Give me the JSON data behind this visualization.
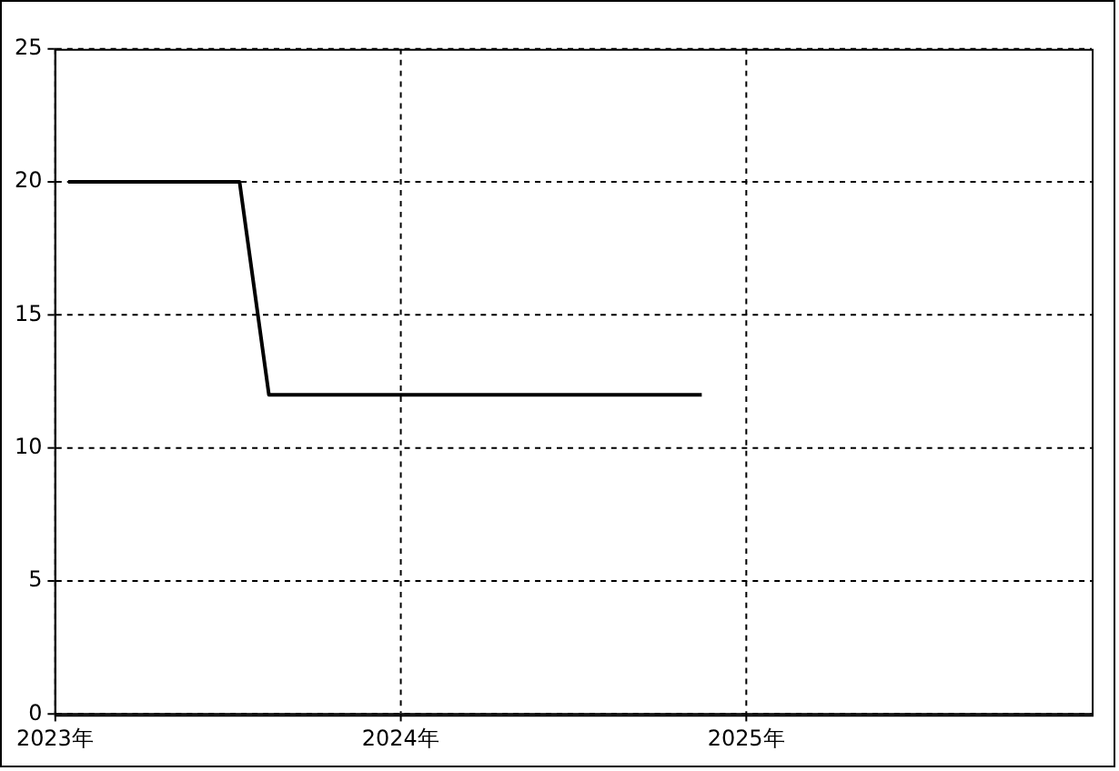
{
  "chart_data": {
    "type": "line",
    "x": [
      "2023-01-15",
      "2023-07-15",
      "2023-08-15",
      "2024-11-15"
    ],
    "series": [
      {
        "color": "#000000",
        "values": [
          20,
          20,
          12,
          12
        ]
      }
    ],
    "xlim": [
      "2023",
      "2026"
    ],
    "xticks": [
      {
        "value": "2023",
        "label": "2023年"
      },
      {
        "value": "2024",
        "label": "2024年"
      },
      {
        "value": "2025",
        "label": "2025年"
      }
    ],
    "ylim": [
      0,
      25
    ],
    "yticks": [
      0,
      5,
      10,
      15,
      20,
      25
    ],
    "grid": true,
    "legend": false,
    "marker": "none",
    "line_style": "solid"
  }
}
